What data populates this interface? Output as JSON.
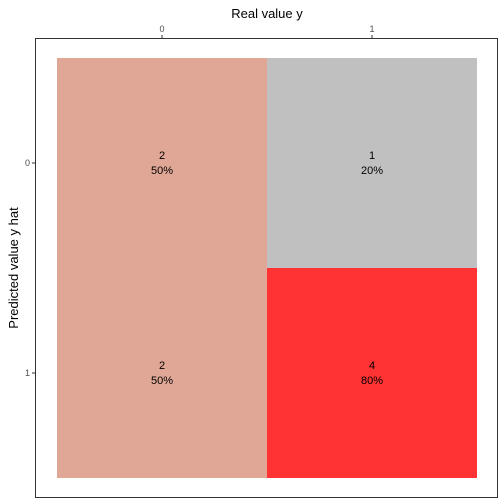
{
  "chart_data": {
    "type": "heatmap",
    "xlabel": "Real value y",
    "ylabel": "Predicted value y hat",
    "x_categories": [
      "0",
      "1"
    ],
    "y_categories": [
      "0",
      "1"
    ],
    "x_axis_position": "top",
    "grid": false,
    "legend": "none",
    "cells": [
      {
        "x": "0",
        "y": "0",
        "count": "2",
        "percent": "50%",
        "color": "#e0a796"
      },
      {
        "x": "1",
        "y": "0",
        "count": "1",
        "percent": "20%",
        "color": "#c0c0c0"
      },
      {
        "x": "0",
        "y": "1",
        "count": "2",
        "percent": "50%",
        "color": "#e0a796"
      },
      {
        "x": "1",
        "y": "1",
        "count": "4",
        "percent": "80%",
        "color": "#ff3333"
      }
    ],
    "colors": {
      "panel_border": "#333333",
      "background": "#ffffff"
    }
  }
}
